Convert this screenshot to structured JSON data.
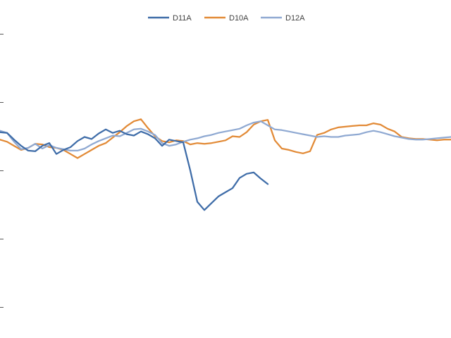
{
  "chart_data": {
    "type": "line",
    "title": "",
    "xlabel": "",
    "ylabel": "",
    "grid": false,
    "legend_position": "top-center",
    "x": [
      0,
      1,
      2,
      3,
      4,
      5,
      6,
      7,
      8,
      9,
      10,
      11,
      12,
      13,
      14,
      15,
      16,
      17,
      18,
      19,
      20,
      21,
      22,
      23,
      24,
      25,
      26,
      27,
      28,
      29,
      30,
      31,
      32,
      33,
      34,
      35,
      36,
      37,
      38,
      39,
      40,
      41,
      42,
      43,
      44,
      45,
      46,
      47,
      48,
      49,
      50,
      51,
      52,
      53,
      54,
      55,
      56,
      57,
      58,
      59,
      60,
      61,
      62,
      63,
      64
    ],
    "series": [
      {
        "name": "D11A",
        "color": "#3e6ca8",
        "values": [
          0.56,
          0.55,
          0.45,
          0.36,
          0.29,
          0.28,
          0.36,
          0.4,
          0.24,
          0.3,
          0.34,
          0.43,
          0.49,
          0.46,
          0.54,
          0.6,
          0.55,
          0.58,
          0.53,
          0.51,
          0.57,
          0.53,
          0.47,
          0.36,
          0.45,
          0.43,
          0.41,
          0.0,
          -0.46,
          -0.58,
          -0.48,
          -0.38,
          -0.32,
          -0.26,
          -0.11,
          -0.05,
          -0.03,
          -0.12,
          -0.2,
          null,
          null,
          null,
          null,
          null,
          null,
          null,
          null,
          null,
          null,
          null,
          null,
          null,
          null,
          null,
          null,
          null,
          null,
          null,
          null,
          null,
          null,
          null,
          null,
          null,
          null
        ]
      },
      {
        "name": "D10A",
        "color": "#e28a36",
        "values": [
          0.45,
          0.42,
          0.36,
          0.3,
          0.33,
          0.39,
          0.38,
          0.34,
          0.33,
          0.3,
          0.24,
          0.18,
          0.24,
          0.3,
          0.36,
          0.4,
          0.48,
          0.56,
          0.65,
          0.72,
          0.75,
          0.62,
          0.5,
          0.43,
          0.41,
          0.44,
          0.43,
          0.38,
          0.4,
          0.39,
          0.4,
          0.42,
          0.44,
          0.5,
          0.49,
          0.56,
          0.67,
          0.72,
          0.74,
          0.44,
          0.32,
          0.3,
          0.27,
          0.25,
          0.28,
          0.52,
          0.55,
          0.6,
          0.63,
          0.64,
          0.65,
          0.66,
          0.66,
          0.69,
          0.67,
          0.61,
          0.57,
          0.49,
          0.47,
          0.46,
          0.46,
          0.45,
          0.44,
          0.45,
          0.45
        ]
      },
      {
        "name": "D12A",
        "color": "#8fa9d2",
        "values": [
          0.58,
          0.55,
          0.42,
          0.31,
          0.33,
          0.39,
          0.32,
          0.37,
          0.33,
          0.31,
          0.29,
          0.29,
          0.32,
          0.38,
          0.43,
          0.47,
          0.51,
          0.5,
          0.55,
          0.6,
          0.61,
          0.57,
          0.52,
          0.4,
          0.36,
          0.38,
          0.42,
          0.45,
          0.47,
          0.5,
          0.52,
          0.55,
          0.57,
          0.59,
          0.61,
          0.66,
          0.7,
          0.72,
          0.66,
          0.6,
          0.59,
          0.57,
          0.55,
          0.53,
          0.51,
          0.49,
          0.5,
          0.49,
          0.49,
          0.51,
          0.52,
          0.53,
          0.56,
          0.58,
          0.56,
          0.53,
          0.5,
          0.48,
          0.46,
          0.45,
          0.45,
          0.46,
          0.47,
          0.48,
          0.49
        ]
      }
    ]
  }
}
